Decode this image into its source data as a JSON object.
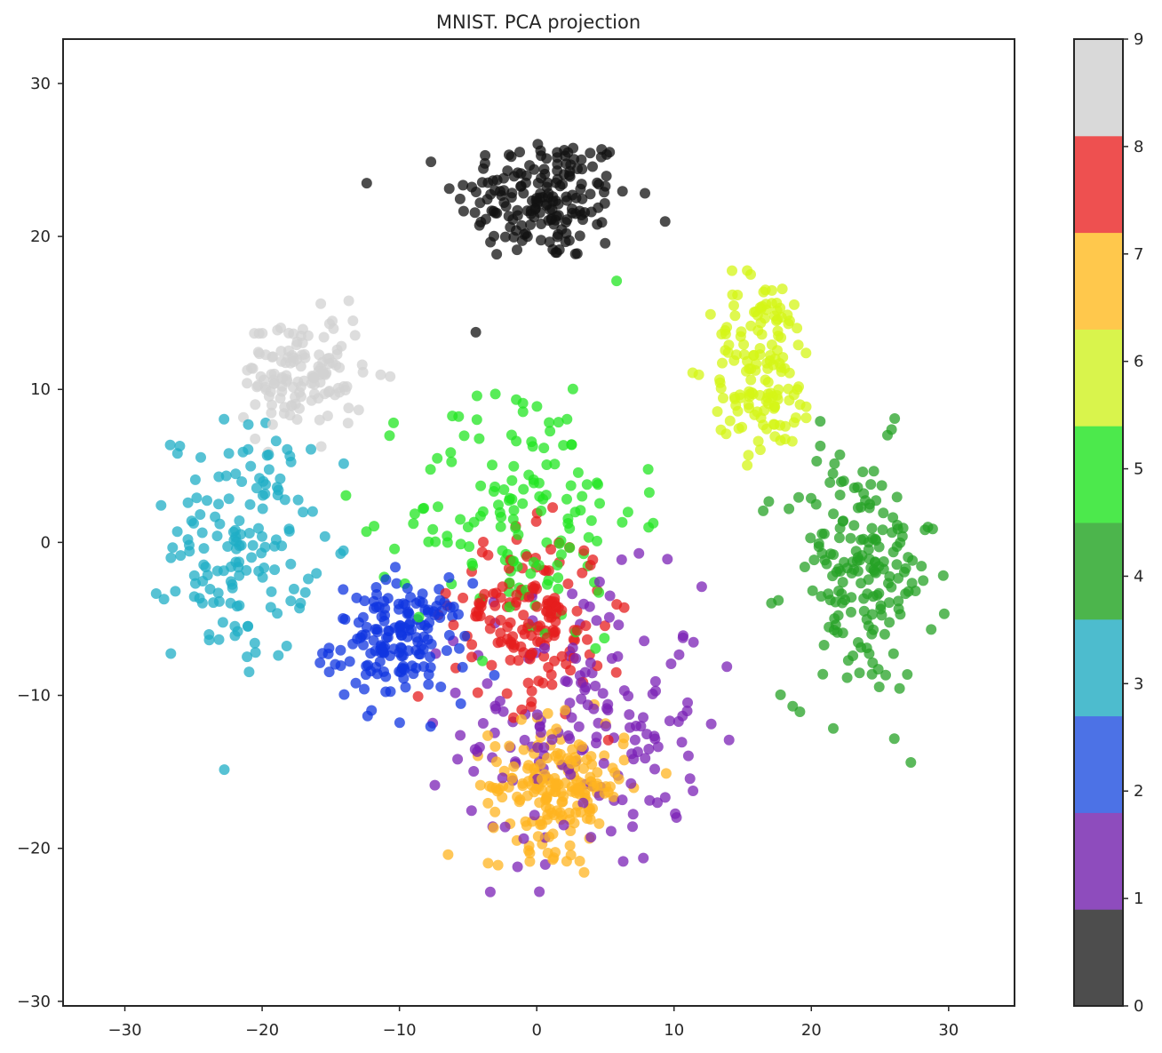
{
  "chart_data": {
    "type": "scatter",
    "title": "MNIST. PCA projection",
    "xlabel": "",
    "ylabel": "",
    "xlim": [
      -34.5,
      34.8
    ],
    "ylim": [
      -30.3,
      32.9
    ],
    "xticks": [
      -30,
      -20,
      -10,
      0,
      10,
      20,
      30
    ],
    "yticks": [
      -30,
      -20,
      -10,
      0,
      10,
      20,
      30
    ],
    "grid": false,
    "colorbar": {
      "ticks": [
        0,
        1,
        2,
        3,
        4,
        5,
        6,
        7,
        8,
        9
      ],
      "colors": [
        "#4d4d4d",
        "#8e4cbd",
        "#4c72e6",
        "#4dbcce",
        "#4cb54c",
        "#4ce94c",
        "#d9f44c",
        "#ffc84c",
        "#ee5050",
        "#d9d9d9"
      ]
    },
    "clusters": [
      {
        "label": 0,
        "color": "#111111",
        "center": [
          0.5,
          22.5
        ],
        "spread": [
          5.8,
          3.8
        ],
        "count": 185
      },
      {
        "label": 1,
        "color": "#7b22b5",
        "center": [
          3.5,
          -12.0
        ],
        "spread": [
          8.0,
          8.5
        ],
        "count": 175
      },
      {
        "label": 2,
        "color": "#1035e0",
        "center": [
          -10.0,
          -6.5
        ],
        "spread": [
          4.5,
          3.5
        ],
        "count": 165
      },
      {
        "label": 3,
        "color": "#1faec6",
        "center": [
          -21.5,
          0.0
        ],
        "spread": [
          4.5,
          7.0
        ],
        "count": 150
      },
      {
        "label": 4,
        "color": "#25a125",
        "center": [
          23.5,
          -2.0
        ],
        "spread": [
          5.0,
          7.5
        ],
        "count": 185
      },
      {
        "label": 5,
        "color": "#22e622",
        "center": [
          -1.0,
          2.0
        ],
        "spread": [
          7.5,
          8.0
        ],
        "count": 150
      },
      {
        "label": 6,
        "color": "#d4f616",
        "center": [
          16.5,
          11.5
        ],
        "spread": [
          3.5,
          5.5
        ],
        "count": 150
      },
      {
        "label": 7,
        "color": "#ffb420",
        "center": [
          1.5,
          -16.0
        ],
        "spread": [
          4.5,
          3.8
        ],
        "count": 190
      },
      {
        "label": 8,
        "color": "#e61e1e",
        "center": [
          -0.5,
          -5.0
        ],
        "spread": [
          5.0,
          5.0
        ],
        "count": 165
      },
      {
        "label": 9,
        "color": "#d2d2d2",
        "center": [
          -17.0,
          11.0
        ],
        "spread": [
          4.0,
          3.5
        ],
        "count": 135
      }
    ]
  }
}
